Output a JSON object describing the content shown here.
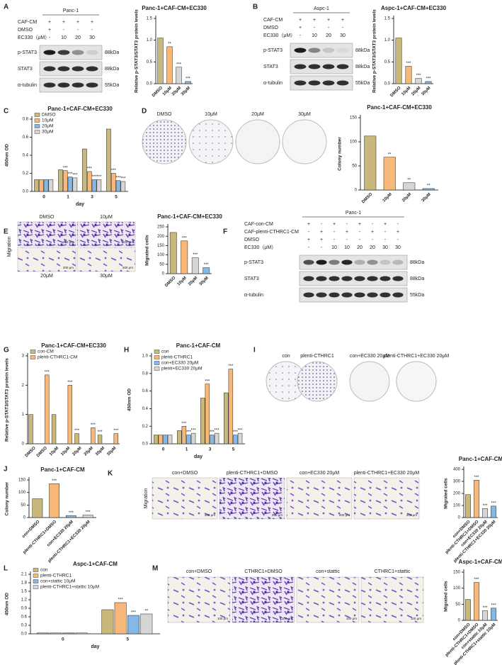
{
  "figure": {
    "panel_letters": [
      "A",
      "B",
      "C",
      "D",
      "E",
      "F",
      "G",
      "H",
      "I",
      "J",
      "K",
      "L",
      "M"
    ],
    "A": {
      "cell_line": "Panc-1",
      "rows": [
        "CAF-CM",
        "DMSO",
        "EC330（μM）"
      ],
      "grid": [
        [
          "+",
          "+",
          "+",
          "+"
        ],
        [
          "+",
          "-",
          "-",
          "-"
        ],
        [
          "-",
          "10",
          "20",
          "30"
        ]
      ],
      "bands": [
        "p-STAT3",
        "STAT3",
        "α-tubulin"
      ],
      "kda": [
        "88kDa",
        "88kDa",
        "55kDa"
      ]
    },
    "B": {
      "cell_line": "Aspc-1",
      "rows": [
        "CAF-CM",
        "DMSO",
        "EC330（μM）"
      ],
      "grid": [
        [
          "+",
          "+",
          "+",
          "+"
        ],
        [
          "+",
          "-",
          "-",
          "-"
        ],
        [
          "-",
          "10",
          "20",
          "30"
        ]
      ],
      "bands": [
        "p-STAT3",
        "STAT3",
        "α-tubulin"
      ],
      "kda": [
        "88kDa",
        "88kDa",
        "55kDa"
      ]
    },
    "D": {
      "labels": [
        "DMSO",
        "10μM",
        "20μM",
        "30μM"
      ]
    },
    "E": {
      "side": "Migration",
      "labels": [
        "DMSO",
        "10μM",
        "20μM",
        "30μM"
      ],
      "scale": "200 μm"
    },
    "F": {
      "cell_line": "Panc-1",
      "rows": [
        "CAF-con-CM",
        "CAF-plenti-CTHRC1-CM",
        "DMSO",
        "EC330（μM）"
      ],
      "grid": [
        [
          "+",
          "-",
          "+",
          "-",
          "+",
          "-",
          "+",
          "-"
        ],
        [
          "-",
          "+",
          "-",
          "+",
          "-",
          "+",
          "-",
          "+"
        ],
        [
          "+",
          "+",
          "-",
          "-",
          "-",
          "-",
          "-",
          "-"
        ],
        [
          "-",
          "-",
          "10",
          "10",
          "20",
          "20",
          "30",
          "30"
        ]
      ],
      "bands": [
        "p-STAT3",
        "STAT3",
        "α-tubulin"
      ],
      "kda": [
        "88kDa",
        "88kDa",
        "55kDa"
      ]
    },
    "I": {
      "labels": [
        "con",
        "plenti-CTHRC1",
        "con+EC330 20μM",
        "plenti-CTHRC1+EC330 20μM"
      ]
    },
    "K": {
      "side": "Migration",
      "labels": [
        "con+DMSO",
        "plenti-CTHRC1+DMSO",
        "con+EC330 20μM",
        "plenti-CTHRC1+EC330 20μM"
      ],
      "scale": "200 μm"
    },
    "M": {
      "labels": [
        "con+DMSO",
        "CTHRC1+DMSO",
        "con+stattic",
        "CTHRC1+stattic"
      ],
      "scale": "100 μm"
    }
  },
  "chart_data": [
    {
      "type": "bar",
      "title": "Panc-1+CAF-CM+EC330",
      "ylabel": "Relative p-STAT3/STAT3 protein levels",
      "categories": [
        "DMSO",
        "10μM",
        "20μM",
        "30μM"
      ],
      "values": [
        1.05,
        0.85,
        0.38,
        0.05
      ],
      "colors": [
        "#c9b87c",
        "#f7b87a",
        "#d6d6d6",
        "#84b8e8"
      ],
      "sig": [
        null,
        "**",
        "***",
        "***"
      ],
      "ylim": [
        0,
        1.5
      ],
      "yticks": [
        {
          "value": 0,
          "label": "0.0"
        },
        0.5,
        {
          "value": 1,
          "label": "1.0"
        },
        1.5
      ]
    },
    {
      "type": "bar",
      "title": "Aspc-1+CAF-CM+EC330",
      "ylabel": "Relative p-STAT3/STAT3 protein levels",
      "categories": [
        "DMSO",
        "10μM",
        "20μM",
        "30μM"
      ],
      "values": [
        1.05,
        0.4,
        0.12,
        0.05
      ],
      "colors": [
        "#c9b87c",
        "#f7b87a",
        "#d6d6d6",
        "#84b8e8"
      ],
      "sig": [
        null,
        "***",
        "***",
        "***"
      ],
      "ylim": [
        0,
        1.5
      ],
      "yticks": [
        {
          "value": 0,
          "label": "0.0"
        },
        0.5,
        {
          "value": 1,
          "label": "1.0"
        },
        1.5
      ]
    },
    {
      "type": "bar",
      "title": "Panc-1+CAF-CM+EC330",
      "ylabel": "450nm OD",
      "xlabel": "day",
      "categories": [
        "0",
        "1",
        "3",
        "5"
      ],
      "legend": "upper left",
      "series": [
        {
          "name": "DMSO",
          "color": "#c9b87c",
          "values": [
            0.13,
            0.24,
            0.47,
            0.69
          ],
          "sig": [
            null,
            null,
            null,
            null
          ]
        },
        {
          "name": "10μM",
          "color": "#f7b87a",
          "values": [
            0.13,
            0.23,
            0.22,
            0.2
          ],
          "sig": [
            null,
            "***",
            "***",
            "***"
          ]
        },
        {
          "name": "20μM",
          "color": "#84b8e8",
          "values": [
            0.13,
            0.16,
            0.13,
            0.12
          ],
          "sig": [
            null,
            "***",
            "***",
            "***"
          ]
        },
        {
          "name": "30μM",
          "color": "#d6d6d6",
          "values": [
            0.13,
            0.15,
            0.13,
            0.11
          ],
          "sig": [
            null,
            "***",
            "***",
            "***"
          ]
        }
      ],
      "ylim": [
        0,
        0.8
      ],
      "yticks": [
        {
          "value": 0,
          "label": "0.0"
        },
        0.2,
        0.4,
        0.6,
        0.8
      ]
    },
    {
      "type": "bar",
      "title": "Panc-1+CAF-CM+EC330",
      "ylabel": "Colony number",
      "categories": [
        "DMSO",
        "10μM",
        "20μM",
        "30μM"
      ],
      "values": [
        112,
        68,
        15,
        3
      ],
      "colors": [
        "#c9b87c",
        "#f7b87a",
        "#d6d6d6",
        "#84b8e8"
      ],
      "sig": [
        null,
        "**",
        "**",
        "**"
      ],
      "ylim": [
        0,
        150
      ],
      "yticks": [
        0,
        50,
        100,
        150
      ]
    },
    {
      "type": "bar",
      "title": "Panc-1+CAF-CM+EC330",
      "ylabel": "Migrated cells",
      "categories": [
        "DMSO",
        "10μM",
        "20μM",
        "30μM"
      ],
      "values": [
        220,
        175,
        85,
        32
      ],
      "colors": [
        "#c9b87c",
        "#f7b87a",
        "#d6d6d6",
        "#84b8e8"
      ],
      "sig": [
        null,
        "***",
        "***",
        "***"
      ],
      "ylim": [
        0,
        250
      ],
      "yticks": [
        0,
        50,
        100,
        150,
        200,
        250
      ]
    },
    {
      "type": "bar",
      "title": "Panc-1+CAF-CM+EC330",
      "ylabel": "Relative p-STAT3/STAT3 protein levels",
      "categories": [
        "DMSO",
        "DMSO",
        "10μM",
        "10μM",
        "20μM",
        "20μM",
        "30μM",
        "30μM"
      ],
      "legend": "upper left",
      "series": [
        {
          "name": "con-CM",
          "color": "#c9b87c",
          "values": [
            1.0,
            null,
            1.0,
            null,
            0.35,
            null,
            0.3,
            null
          ],
          "sig": [
            null,
            null,
            null,
            null,
            "***",
            null,
            "***",
            null
          ]
        },
        {
          "name": "plenti-CTHRC1-CM",
          "color": "#f7b87a",
          "values": [
            null,
            2.35,
            null,
            2.0,
            null,
            0.55,
            null,
            0.35
          ],
          "sig": [
            null,
            "***",
            null,
            "***",
            null,
            "***",
            null,
            "***"
          ]
        }
      ],
      "ylim": [
        0,
        3
      ],
      "yticks": [
        0,
        1,
        2,
        3
      ]
    },
    {
      "type": "bar",
      "title": "Panc-1+CAF-CM",
      "ylabel": "450nm OD",
      "xlabel": "day",
      "categories": [
        "0",
        "1",
        "3",
        "5"
      ],
      "legend": "upper left",
      "series": [
        {
          "name": "con",
          "color": "#c9b87c",
          "values": [
            0.1,
            0.15,
            0.52,
            0.58
          ],
          "sig": [
            null,
            null,
            null,
            null
          ]
        },
        {
          "name": "plenti-CTHRC1",
          "color": "#f7b87a",
          "values": [
            0.1,
            0.2,
            0.68,
            0.85
          ],
          "sig": [
            null,
            "***",
            "***",
            "***"
          ]
        },
        {
          "name": "con+EC330 20μM",
          "color": "#84b8e8",
          "values": [
            0.1,
            0.1,
            0.1,
            0.1
          ],
          "sig": [
            null,
            "***",
            "***",
            "***"
          ]
        },
        {
          "name": "plenti+EC330 20μM",
          "color": "#d6d6d6",
          "values": [
            0.1,
            0.12,
            0.12,
            0.12
          ],
          "sig": [
            null,
            "***",
            "***",
            "***"
          ]
        }
      ],
      "ylim": [
        0,
        1
      ],
      "yticks": [
        {
          "value": 0,
          "label": "0.0"
        },
        0.2,
        0.4,
        0.6,
        0.8,
        {
          "value": 1,
          "label": "1.0"
        }
      ]
    },
    {
      "type": "bar",
      "title": "Panc-1+CAF-CM",
      "ylabel": "Colony number",
      "categories": [
        "con+DMSO",
        "plenti-CTHRC1+DMSO",
        "con+EC330 20μM",
        "plenti-CTHRC1+EC330 20μM"
      ],
      "values": [
        75,
        135,
        8,
        10
      ],
      "colors": [
        "#c9b87c",
        "#f7b87a",
        "#84b8e8",
        "#d6d6d6"
      ],
      "sig": [
        null,
        "***",
        "***",
        "***"
      ],
      "ylim": [
        0,
        150
      ],
      "yticks": [
        0,
        50,
        100,
        150
      ]
    },
    {
      "type": "bar",
      "title": "Panc-1+CAF-CM",
      "ylabel": "Migrated cells",
      "categories": [
        "con+DMSO",
        "plenti-CTHRC1+DMSO",
        "con+EC330 20μM",
        "plenti-CTHRC1+EC330 20μM"
      ],
      "values": [
        190,
        310,
        75,
        95
      ],
      "colors": [
        "#c9b87c",
        "#f7b87a",
        "#d6d6d6",
        "#84b8e8"
      ],
      "sig": [
        null,
        "***",
        "***",
        "***"
      ],
      "ylim": [
        0,
        400
      ],
      "yticks": [
        0,
        100,
        200,
        300,
        400
      ]
    },
    {
      "type": "bar",
      "title": "Aspc-1+CAF-CM",
      "ylabel": "450nm OD",
      "xlabel": "day",
      "categories": [
        "0",
        "5"
      ],
      "legend": "upper left",
      "series": [
        {
          "name": "con",
          "color": "#c9b87c",
          "values": [
            0.03,
            0.85
          ],
          "sig": [
            null,
            null
          ]
        },
        {
          "name": "plenti-CTHRC1",
          "color": "#f7b87a",
          "values": [
            0.03,
            1.1
          ],
          "sig": [
            null,
            "***"
          ]
        },
        {
          "name": "con+stattic 10μM",
          "color": "#84b8e8",
          "values": [
            0.03,
            0.65
          ],
          "sig": [
            null,
            "***"
          ]
        },
        {
          "name": "plenti-CTHRC1+stattic 10μM",
          "color": "#d6d6d6",
          "values": [
            0.03,
            0.7
          ],
          "sig": [
            null,
            "**"
          ]
        }
      ],
      "ylim": [
        0,
        2.1
      ],
      "yticks": [
        {
          "value": 0,
          "label": "0.0"
        },
        0.3,
        0.6,
        0.9,
        1.2,
        1.5,
        1.8,
        2.1
      ]
    },
    {
      "type": "bar",
      "title": "Aspc-1+CAF-CM",
      "ylabel": "Migrated cells",
      "categories": [
        "con+DMSO",
        "plenti-CTHRC1+DMSO",
        "con+stattic 10μM",
        "plenti-CTHRC1+stattic 10μM"
      ],
      "values": [
        65,
        118,
        30,
        38
      ],
      "colors": [
        "#c9b87c",
        "#f7b87a",
        "#d6d6d6",
        "#84b8e8"
      ],
      "sig": [
        null,
        "***",
        "***",
        "***"
      ],
      "ylim": [
        0,
        150
      ],
      "yticks": [
        0,
        50,
        100,
        150
      ]
    }
  ]
}
